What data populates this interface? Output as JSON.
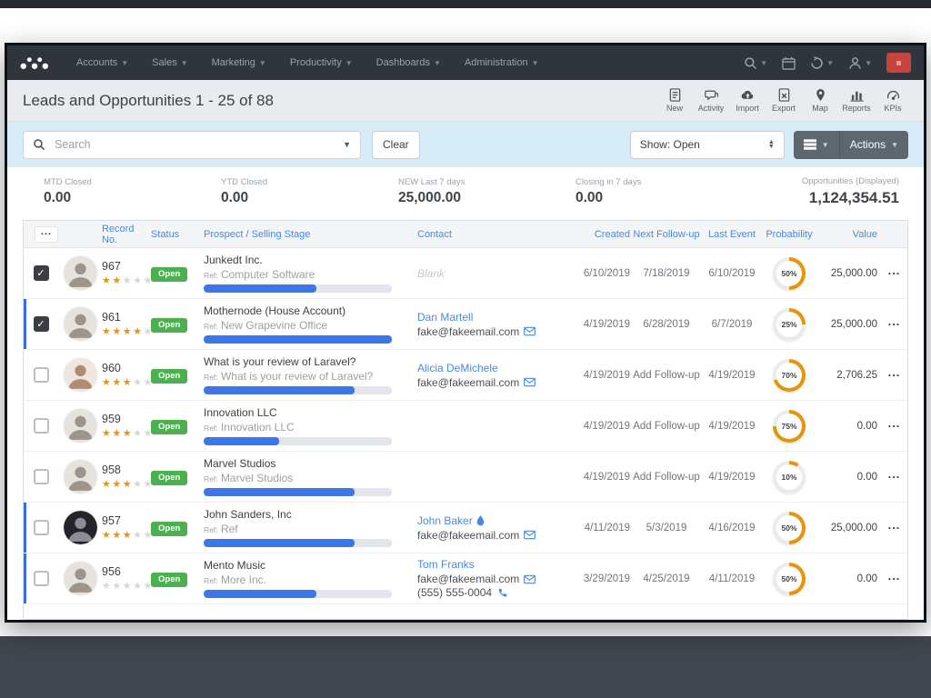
{
  "navbar": {
    "items": [
      {
        "label": "Accounts"
      },
      {
        "label": "Sales"
      },
      {
        "label": "Marketing"
      },
      {
        "label": "Productivity"
      },
      {
        "label": "Dashboards"
      },
      {
        "label": "Administration"
      }
    ],
    "right_icons": [
      {
        "name": "search",
        "caret": true
      },
      {
        "name": "calendar",
        "caret": false
      },
      {
        "name": "history",
        "caret": true
      },
      {
        "name": "user",
        "caret": true
      }
    ]
  },
  "header": {
    "title": "Leads and Opportunities 1 - 25 of 88",
    "tools": [
      {
        "label": "New",
        "icon": "doc"
      },
      {
        "label": "Activity",
        "icon": "chat"
      },
      {
        "label": "Import",
        "icon": "cloud"
      },
      {
        "label": "Export",
        "icon": "filex"
      },
      {
        "label": "Map",
        "icon": "pin"
      },
      {
        "label": "Reports",
        "icon": "chart"
      },
      {
        "label": "KPIs",
        "icon": "gauge"
      }
    ]
  },
  "filters": {
    "search_placeholder": "Search",
    "clear_label": "Clear",
    "show_filter": "Show: Open",
    "actions_label": "Actions"
  },
  "stats": [
    {
      "label": "MTD Closed",
      "value": "0.00"
    },
    {
      "label": "YTD Closed",
      "value": "0.00"
    },
    {
      "label": "NEW Last 7 days",
      "value": "25,000.00"
    },
    {
      "label": "Closing in 7 days",
      "value": "0.00"
    },
    {
      "label": "Opportunities (Displayed)",
      "value": "1,124,354.51"
    }
  ],
  "table": {
    "columns": [
      "Record No.",
      "Status",
      "Prospect / Selling Stage",
      "Contact",
      "Created",
      "Next Follow-up",
      "Last Event",
      "Probability",
      "Value"
    ],
    "ref_label": "Ref:",
    "rows": [
      {
        "record_no": "967",
        "stars": 2,
        "status": "Open",
        "prospect": "Junkedt Inc.",
        "ref": "Computer Software",
        "progress": 60,
        "contact_blank": "Blank",
        "created": "6/10/2019",
        "next_follow_up": "7/18/2019",
        "last_event": "6/10/2019",
        "probability": 50,
        "value": "25,000.00",
        "checked": true,
        "leftbar": false,
        "avatar": "man"
      },
      {
        "record_no": "961",
        "stars": 4,
        "status": "Open",
        "prospect": "Mothernode (House Account)",
        "ref": "New Grapevine Office",
        "progress": 100,
        "contact_name": "Dan Martell",
        "email": "fake@fakeemail.com",
        "created": "4/19/2019",
        "next_follow_up": "6/28/2019",
        "last_event": "6/7/2019",
        "probability": 25,
        "value": "25,000.00",
        "checked": true,
        "leftbar": true,
        "avatar": "man"
      },
      {
        "record_no": "960",
        "stars": 3,
        "status": "Open",
        "prospect": "What is your review of Laravel?",
        "ref": "What is your review of Laravel?",
        "progress": 80,
        "contact_name": "Alicia DeMichele",
        "email": "fake@fakeemail.com",
        "created": "4/19/2019",
        "next_follow_up": "Add Follow-up",
        "follow_is_link": true,
        "last_event": "4/19/2019",
        "probability": 70,
        "value": "2,706.25",
        "checked": false,
        "leftbar": false,
        "avatar": "woman"
      },
      {
        "record_no": "959",
        "stars": 3,
        "status": "Open",
        "prospect": "Innovation LLC",
        "ref": "Innovation LLC",
        "progress": 40,
        "created": "4/19/2019",
        "next_follow_up": "Add Follow-up",
        "follow_is_link": true,
        "last_event": "4/19/2019",
        "probability": 75,
        "value": "0.00",
        "checked": false,
        "leftbar": false,
        "avatar": "man"
      },
      {
        "record_no": "958",
        "stars": 3,
        "status": "Open",
        "prospect": "Marvel Studios",
        "ref": "Marvel Studios",
        "progress": 80,
        "created": "4/19/2019",
        "next_follow_up": "Add Follow-up",
        "follow_is_link": true,
        "last_event": "4/19/2019",
        "probability": 10,
        "value": "0.00",
        "checked": false,
        "leftbar": false,
        "avatar": "man"
      },
      {
        "record_no": "957",
        "stars": 3,
        "status": "Open",
        "prospect": "John Sanders, Inc",
        "ref": "Ref",
        "progress": 80,
        "contact_name": "John Baker",
        "contact_icon": "droplet",
        "email": "fake@fakeemail.com",
        "created": "4/11/2019",
        "next_follow_up": "5/3/2019",
        "last_event": "4/16/2019",
        "probability": 50,
        "value": "25,000.00",
        "checked": false,
        "leftbar": true,
        "avatar": "woman-dark"
      },
      {
        "record_no": "956",
        "stars": 0,
        "status": "Open",
        "prospect": "Mento Music",
        "ref": "More Inc.",
        "progress": 60,
        "contact_name": "Tom Franks",
        "email": "fake@fakeemail.com",
        "phone": "(555) 555-0004",
        "created": "3/29/2019",
        "next_follow_up": "4/25/2019",
        "last_event": "4/11/2019",
        "probability": 50,
        "value": "0.00",
        "checked": false,
        "leftbar": true,
        "avatar": "man"
      }
    ]
  },
  "colors": {
    "accent_blue": "#4a89dc",
    "progress_blue": "#3b78e7",
    "status_green": "#4caf50",
    "donut_orange": "#e8930c",
    "navbar_bg": "#2f353b",
    "filter_band": "#d8ecf8",
    "alert_red": "#c8423e"
  }
}
